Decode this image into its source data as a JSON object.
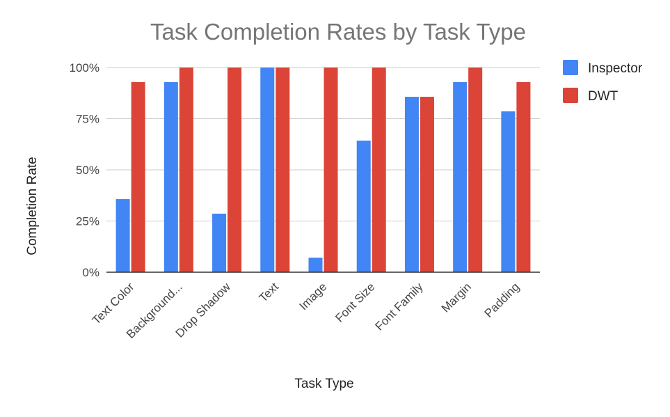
{
  "chart_data": {
    "type": "bar",
    "title": "Task Completion Rates by Task Type",
    "xlabel": "Task Type",
    "ylabel": "Completion Rate",
    "ylim": [
      0,
      100
    ],
    "yticks": [
      "0%",
      "25%",
      "50%",
      "75%",
      "100%"
    ],
    "ytick_values": [
      0,
      25,
      50,
      75,
      100
    ],
    "grid": true,
    "legend_position": "right",
    "categories": [
      "Text Color",
      "Background...",
      "Drop Shadow",
      "Text",
      "Image",
      "Font Size",
      "Font Family",
      "Margin",
      "Padding"
    ],
    "series": [
      {
        "name": "Inspector",
        "color": "#4285F4",
        "values": [
          35.7,
          92.9,
          28.6,
          100,
          7.1,
          64.3,
          85.7,
          92.9,
          78.6
        ]
      },
      {
        "name": "DWT",
        "color": "#DB4437",
        "values": [
          92.9,
          100,
          100,
          100,
          100,
          100,
          85.7,
          100,
          92.9
        ]
      }
    ]
  }
}
